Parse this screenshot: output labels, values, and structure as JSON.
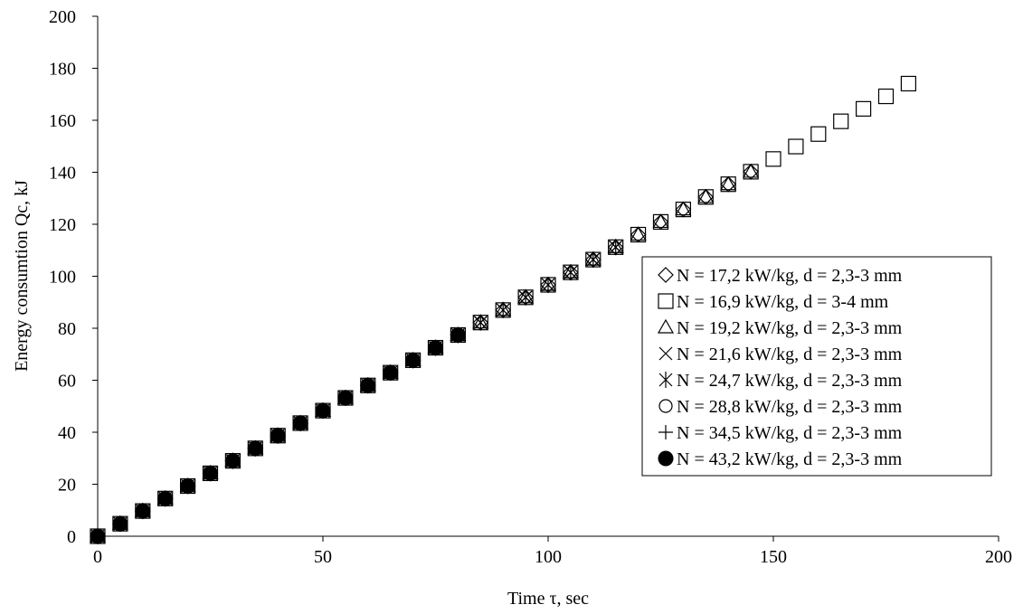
{
  "chart_data": {
    "type": "scatter",
    "title": "",
    "xlabel": "Time τ, sec",
    "ylabel": "Energy consumtion Qc, kJ",
    "xlim": [
      0,
      200
    ],
    "ylim": [
      0,
      200
    ],
    "xticks": [
      0,
      50,
      100,
      150,
      200
    ],
    "yticks": [
      0,
      20,
      40,
      60,
      80,
      100,
      120,
      140,
      160,
      180,
      200
    ],
    "grid": false,
    "legend_position": "right",
    "series": [
      {
        "name": "N = 17,2 kW/kg, d = 2,3-3 mm",
        "marker": "diamond-open",
        "x": [
          0,
          5,
          10,
          15,
          20,
          25,
          30,
          35,
          40,
          45,
          50,
          55,
          60,
          65,
          70,
          75,
          80,
          85,
          90,
          95,
          100,
          105,
          110,
          115,
          120,
          125,
          130,
          135,
          140,
          145
        ],
        "y": [
          0,
          4.8,
          9.7,
          14.5,
          19.3,
          24.2,
          29.0,
          33.8,
          38.7,
          43.5,
          48.3,
          53.2,
          58.0,
          62.9,
          67.7,
          72.5,
          77.4,
          82.2,
          87.0,
          91.9,
          96.7,
          101.5,
          106.4,
          111.2,
          116.0,
          120.9,
          125.7,
          130.5,
          135.4,
          140.2
        ]
      },
      {
        "name": "N = 16,9 kW/kg, d = 3-4 mm",
        "marker": "square-open",
        "x": [
          0,
          5,
          10,
          15,
          20,
          25,
          30,
          35,
          40,
          45,
          50,
          55,
          60,
          65,
          70,
          75,
          80,
          85,
          90,
          95,
          100,
          105,
          110,
          115,
          120,
          125,
          130,
          135,
          140,
          145,
          150,
          155,
          160,
          165,
          170,
          175,
          180
        ],
        "y": [
          0,
          4.8,
          9.7,
          14.5,
          19.3,
          24.2,
          29.0,
          33.8,
          38.7,
          43.5,
          48.3,
          53.2,
          58.0,
          62.9,
          67.7,
          72.5,
          77.4,
          82.2,
          87.0,
          91.9,
          96.7,
          101.5,
          106.4,
          111.2,
          116.0,
          120.9,
          125.7,
          130.5,
          135.4,
          140.2,
          145.1,
          149.9,
          154.7,
          159.6,
          164.4,
          169.2,
          174.1
        ]
      },
      {
        "name": "N = 19,2 kW/kg, d = 2,3-3 mm",
        "marker": "triangle-open",
        "x": [
          0,
          5,
          10,
          15,
          20,
          25,
          30,
          35,
          40,
          45,
          50,
          55,
          60,
          65,
          70,
          75,
          80,
          85,
          90,
          95,
          100,
          105,
          110,
          115,
          120,
          125,
          130,
          135,
          140,
          145
        ],
        "y": [
          0,
          4.8,
          9.7,
          14.5,
          19.3,
          24.2,
          29.0,
          33.8,
          38.7,
          43.5,
          48.3,
          53.2,
          58.0,
          62.9,
          67.7,
          72.5,
          77.4,
          82.2,
          87.0,
          91.9,
          96.7,
          101.5,
          106.4,
          111.2,
          116.0,
          120.9,
          125.7,
          130.5,
          135.4,
          140.2
        ]
      },
      {
        "name": "N = 21,6 kW/kg, d = 2,3-3 mm",
        "marker": "x",
        "x": [
          0,
          5,
          10,
          15,
          20,
          25,
          30,
          35,
          40,
          45,
          50,
          55,
          60,
          65,
          70,
          75,
          80,
          85,
          90,
          95,
          100,
          105,
          110,
          115
        ],
        "y": [
          0,
          4.8,
          9.7,
          14.5,
          19.3,
          24.2,
          29.0,
          33.8,
          38.7,
          43.5,
          48.3,
          53.2,
          58.0,
          62.9,
          67.7,
          72.5,
          77.4,
          82.2,
          87.0,
          91.9,
          96.7,
          101.5,
          106.4,
          111.2
        ]
      },
      {
        "name": "N = 24,7 kW/kg, d = 2,3-3 mm",
        "marker": "asterisk",
        "x": [
          0,
          5,
          10,
          15,
          20,
          25,
          30,
          35,
          40,
          45,
          50,
          55,
          60,
          65,
          70,
          75,
          80,
          85,
          90,
          95,
          100,
          105,
          110,
          115
        ],
        "y": [
          0,
          4.8,
          9.7,
          14.5,
          19.3,
          24.2,
          29.0,
          33.8,
          38.7,
          43.5,
          48.3,
          53.2,
          58.0,
          62.9,
          67.7,
          72.5,
          77.4,
          82.2,
          87.0,
          91.9,
          96.7,
          101.5,
          106.4,
          111.2
        ]
      },
      {
        "name": "N = 28,8 kW/kg, d = 2,3-3 mm",
        "marker": "circle-open",
        "x": [
          0,
          5,
          10,
          15,
          20,
          25,
          30,
          35,
          40,
          45,
          50,
          55,
          60,
          65,
          70,
          75,
          80
        ],
        "y": [
          0,
          4.8,
          9.7,
          14.5,
          19.3,
          24.2,
          29.0,
          33.8,
          38.7,
          43.5,
          48.3,
          53.2,
          58.0,
          62.9,
          67.7,
          72.5,
          77.4
        ]
      },
      {
        "name": "N = 34,5 kW/kg, d = 2,3-3 mm",
        "marker": "plus",
        "x": [
          0,
          5,
          10,
          15,
          20,
          25,
          30,
          35,
          40,
          45,
          50,
          55,
          60,
          65,
          70,
          75,
          80
        ],
        "y": [
          0,
          4.8,
          9.7,
          14.5,
          19.3,
          24.2,
          29.0,
          33.8,
          38.7,
          43.5,
          48.3,
          53.2,
          58.0,
          62.9,
          67.7,
          72.5,
          77.4
        ]
      },
      {
        "name": "N = 43,2 kW/kg, d = 2,3-3 mm",
        "marker": "circle-filled",
        "x": [
          0,
          5,
          10,
          15,
          20,
          25,
          30,
          35,
          40,
          45,
          50,
          55,
          60,
          65,
          70,
          75,
          80
        ],
        "y": [
          0,
          4.8,
          9.7,
          14.5,
          19.3,
          24.2,
          29.0,
          33.8,
          38.7,
          43.5,
          48.3,
          53.2,
          58.0,
          62.9,
          67.7,
          72.5,
          77.4
        ]
      }
    ]
  }
}
